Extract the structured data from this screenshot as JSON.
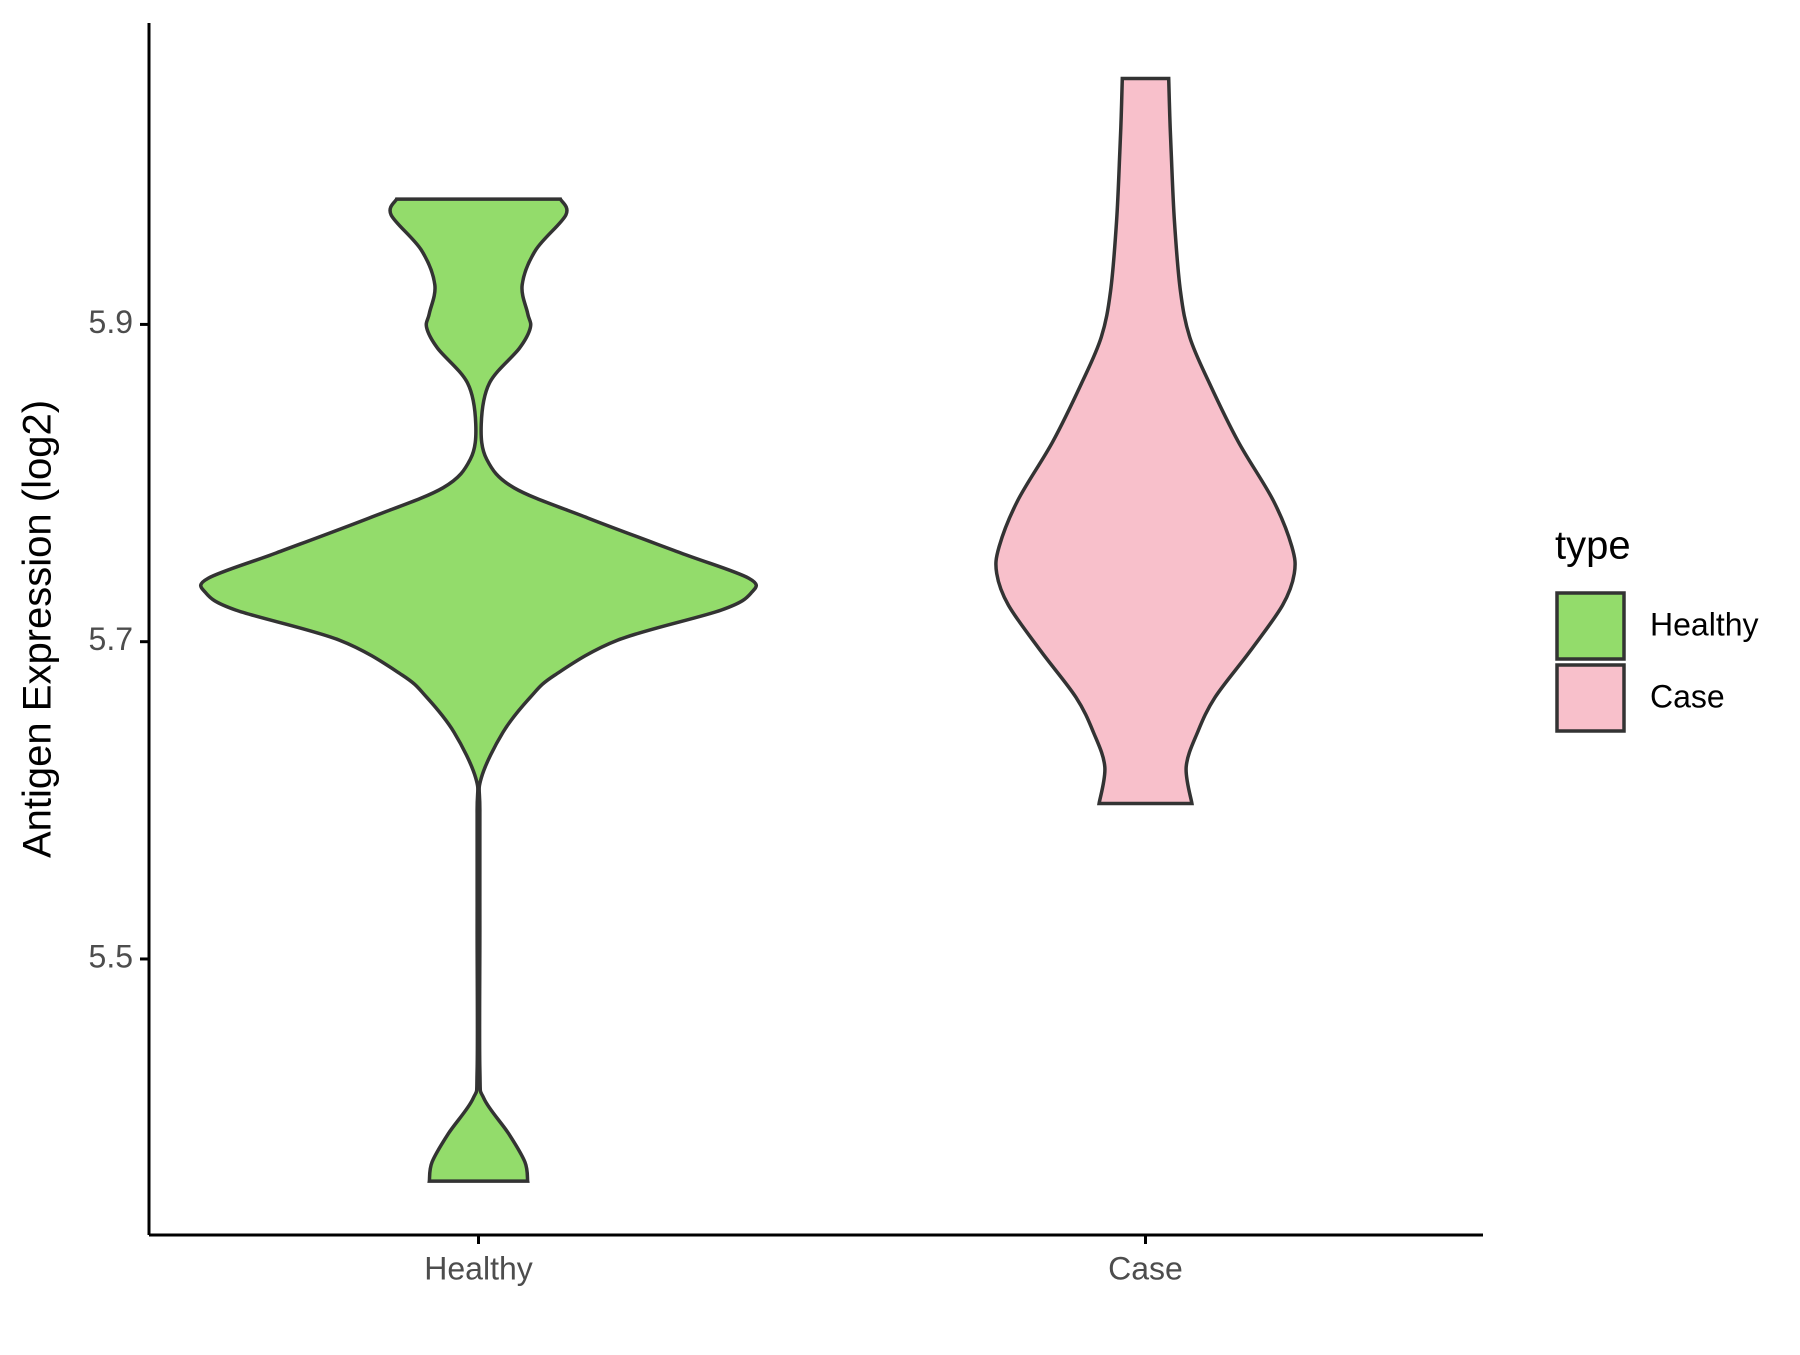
{
  "chart_data": {
    "type": "violin",
    "y_label": "Antigen Expression (log2)",
    "categories": [
      "Healthy",
      "Case"
    ],
    "legend_title": "type",
    "legend": "right",
    "ylim": [
      5.326,
      6.09
    ],
    "yticks": [
      5.5,
      5.7,
      5.9
    ],
    "series": [
      {
        "name": "Healthy",
        "color": "#93dc6b",
        "y": [
          5.979,
          5.969,
          5.947,
          5.925,
          5.907,
          5.898,
          5.885,
          5.863,
          5.837,
          5.815,
          5.797,
          5.778,
          5.756,
          5.74,
          5.731,
          5.72,
          5.701,
          5.679,
          5.665,
          5.643,
          5.614,
          5.592,
          5.518,
          5.43,
          5.412,
          5.39,
          5.372,
          5.36
        ],
        "width": [
          0.3,
          0.32,
          0.21,
          0.16,
          0.18,
          0.19,
          0.15,
          0.04,
          0.01,
          0.03,
          0.13,
          0.4,
          0.74,
          0.99,
          1.0,
          0.89,
          0.51,
          0.28,
          0.19,
          0.09,
          0.01,
          0.005,
          0.005,
          0.005,
          0.02,
          0.11,
          0.17,
          0.18
        ]
      },
      {
        "name": "Case",
        "color": "#f8c0cb",
        "y": [
          6.055,
          6.031,
          6.009,
          5.965,
          5.921,
          5.892,
          5.863,
          5.826,
          5.789,
          5.76,
          5.743,
          5.723,
          5.694,
          5.665,
          5.643,
          5.621,
          5.598
        ],
        "width": [
          0.085,
          0.089,
          0.094,
          0.106,
          0.128,
          0.162,
          0.234,
          0.34,
          0.468,
          0.536,
          0.545,
          0.502,
          0.383,
          0.255,
          0.191,
          0.149,
          0.17
        ]
      }
    ]
  }
}
